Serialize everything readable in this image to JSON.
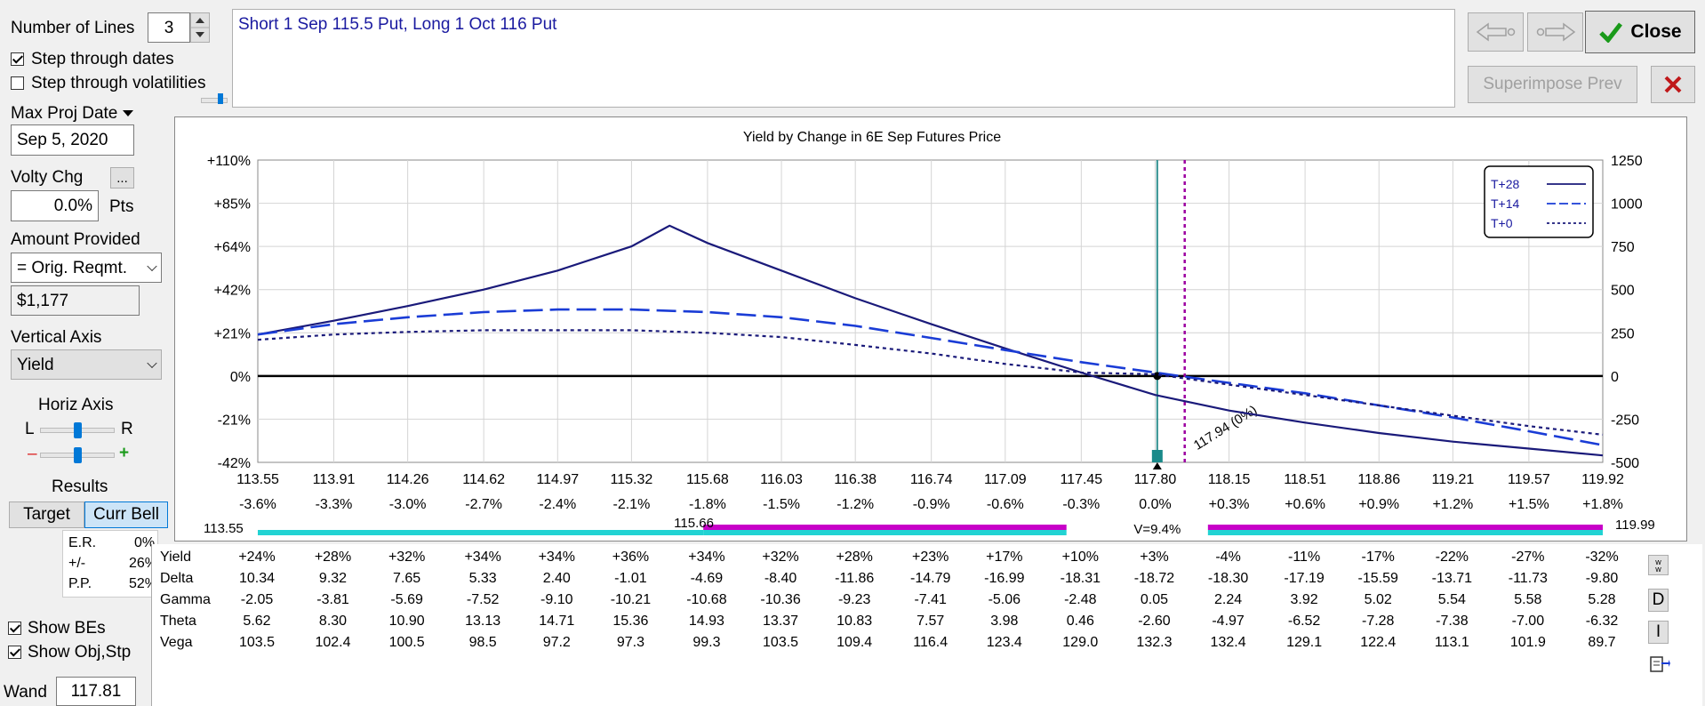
{
  "controls": {
    "num_lines_label": "Number of Lines",
    "num_lines_value": "3",
    "step_dates": {
      "label": "Step through dates",
      "checked": true
    },
    "step_vols": {
      "label": "Step through volatilities",
      "checked": false
    },
    "max_proj_label": "Max Proj Date",
    "max_proj_value": "Sep 5, 2020",
    "volty_label": "Volty Chg",
    "volty_btn": "...",
    "volty_value": "0.0%",
    "volty_unit": "Pts",
    "amount_label": "Amount Provided",
    "amount_option": "= Orig. Reqmt.",
    "amount_value": "$1,177",
    "vaxis_label": "Vertical Axis",
    "vaxis_value": "Yield",
    "horiz_label": "Horiz Axis",
    "horiz_L": "L",
    "horiz_R": "R",
    "minus": "–",
    "plus": "+",
    "results_label": "Results",
    "target_btn": "Target",
    "currbell_btn": "Curr Bell",
    "er_label": "E.R.",
    "er_value": "0%",
    "pm_label": "+/-",
    "pm_value": "26%",
    "pp_label": "P.P.",
    "pp_value": "52%",
    "show_bes": {
      "label": "Show BEs",
      "checked": true
    },
    "show_obj": {
      "label": "Show Obj,Stp",
      "checked": true
    },
    "wand_label": "Wand",
    "wand_value": "117.81"
  },
  "description": "Short 1 Sep 115.5 Put, Long 1 Oct 116 Put",
  "buttons": {
    "close": "Close",
    "superimpose": "Superimpose Prev"
  },
  "colors": {
    "t28": "#1a1a7a",
    "t14": "#1a3cd6",
    "t0": "#1a1a7a",
    "wand": "#2f8f8f",
    "be": "#9c00a0",
    "band_cyan": "#22d3d3",
    "band_magenta": "#c800c8"
  },
  "chart_data": {
    "type": "line",
    "title": "Yield by Change in 6E Sep Futures Price",
    "x_prices": [
      "113.55",
      "113.91",
      "114.26",
      "114.62",
      "114.97",
      "115.32",
      "115.68",
      "116.03",
      "116.38",
      "116.74",
      "117.09",
      "117.45",
      "117.80",
      "118.15",
      "118.51",
      "118.86",
      "119.21",
      "119.57",
      "119.92"
    ],
    "x_pct": [
      "-3.6%",
      "-3.3%",
      "-3.0%",
      "-2.7%",
      "-2.4%",
      "-2.1%",
      "-1.8%",
      "-1.5%",
      "-1.2%",
      "-0.9%",
      "-0.6%",
      "-0.3%",
      "0.0%",
      "+0.3%",
      "+0.6%",
      "+0.9%",
      "+1.2%",
      "+1.5%",
      "+1.8%"
    ],
    "xlim": [
      113.55,
      119.92
    ],
    "y_left_ticks": [
      {
        "label": "+110%",
        "v": 1250
      },
      {
        "label": "+85%",
        "v": 1000
      },
      {
        "label": "+64%",
        "v": 750
      },
      {
        "label": "+42%",
        "v": 500
      },
      {
        "label": "+21%",
        "v": 250
      },
      {
        "label": "0%",
        "v": 0
      },
      {
        "label": "-21%",
        "v": -250
      },
      {
        "label": "-42%",
        "v": -500
      }
    ],
    "y_right_ticks": [
      "1250",
      "1000",
      "750",
      "500",
      "250",
      "0",
      "-250",
      "-500"
    ],
    "ylim": [
      -500,
      1250
    ],
    "grid": true,
    "legend_position": "top-right",
    "series": [
      {
        "name": "T+28",
        "style": "solid",
        "x": [
          113.55,
          113.91,
          114.26,
          114.62,
          114.97,
          115.32,
          115.5,
          115.68,
          116.03,
          116.38,
          116.74,
          117.09,
          117.45,
          117.8,
          118.15,
          118.51,
          118.86,
          119.21,
          119.57,
          119.92
        ],
        "y": [
          240,
          320,
          405,
          500,
          610,
          750,
          870,
          770,
          610,
          450,
          300,
          160,
          20,
          -110,
          -200,
          -270,
          -330,
          -380,
          -420,
          -460
        ]
      },
      {
        "name": "T+14",
        "style": "dashed",
        "x": [
          113.55,
          113.91,
          114.26,
          114.62,
          114.97,
          115.32,
          115.68,
          116.03,
          116.38,
          116.74,
          117.09,
          117.45,
          117.8,
          118.15,
          118.51,
          118.86,
          119.21,
          119.57,
          119.92
        ],
        "y": [
          240,
          300,
          340,
          370,
          385,
          385,
          370,
          340,
          290,
          220,
          150,
          80,
          20,
          -40,
          -100,
          -170,
          -240,
          -320,
          -400
        ]
      },
      {
        "name": "T+0",
        "style": "dotted",
        "x": [
          113.55,
          113.91,
          114.26,
          114.62,
          114.97,
          115.32,
          115.68,
          116.03,
          116.38,
          116.74,
          117.09,
          117.45,
          117.8,
          118.15,
          118.51,
          118.86,
          119.21,
          119.57,
          119.92
        ],
        "y": [
          210,
          240,
          255,
          265,
          265,
          265,
          250,
          225,
          180,
          130,
          70,
          20,
          10,
          -50,
          -110,
          -170,
          -230,
          -290,
          -340
        ]
      }
    ],
    "annotations": {
      "wand_price": 117.81,
      "breakeven_price": 117.94,
      "breakeven_label": "117.94 (0%)"
    },
    "bands": {
      "left_label": "113.55",
      "mid_label": "115.66",
      "right_label": "119.99",
      "v_label": "V=9.4%",
      "cyan_range": [
        113.55,
        115.66
      ],
      "magenta_ranges": [
        [
          115.66,
          117.38
        ],
        [
          118.05,
          119.92
        ]
      ]
    }
  },
  "greeks": {
    "rows": [
      {
        "name": "Yield",
        "values": [
          "+24%",
          "+28%",
          "+32%",
          "+34%",
          "+34%",
          "+36%",
          "+34%",
          "+32%",
          "+28%",
          "+23%",
          "+17%",
          "+10%",
          "+3%",
          "-4%",
          "-11%",
          "-17%",
          "-22%",
          "-27%",
          "-32%"
        ]
      },
      {
        "name": "Delta",
        "values": [
          "10.34",
          "9.32",
          "7.65",
          "5.33",
          "2.40",
          "-1.01",
          "-4.69",
          "-8.40",
          "-11.86",
          "-14.79",
          "-16.99",
          "-18.31",
          "-18.72",
          "-18.30",
          "-17.19",
          "-15.59",
          "-13.71",
          "-11.73",
          "-9.80"
        ]
      },
      {
        "name": "Gamma",
        "values": [
          "-2.05",
          "-3.81",
          "-5.69",
          "-7.52",
          "-9.10",
          "-10.21",
          "-10.68",
          "-10.36",
          "-9.23",
          "-7.41",
          "-5.06",
          "-2.48",
          "0.05",
          "2.24",
          "3.92",
          "5.02",
          "5.54",
          "5.58",
          "5.28"
        ]
      },
      {
        "name": "Theta",
        "values": [
          "5.62",
          "8.30",
          "10.90",
          "13.13",
          "14.71",
          "15.36",
          "14.93",
          "13.37",
          "10.83",
          "7.57",
          "3.98",
          "0.46",
          "-2.60",
          "-4.97",
          "-6.52",
          "-7.28",
          "-7.38",
          "-7.00",
          "-6.32"
        ]
      },
      {
        "name": "Vega",
        "values": [
          "103.5",
          "102.4",
          "100.5",
          "98.5",
          "97.2",
          "97.3",
          "99.3",
          "103.5",
          "109.4",
          "116.4",
          "123.4",
          "129.0",
          "132.3",
          "132.4",
          "129.1",
          "122.4",
          "113.1",
          "101.9",
          "89.7"
        ]
      }
    ],
    "side_D": "D",
    "side_I": "I"
  }
}
